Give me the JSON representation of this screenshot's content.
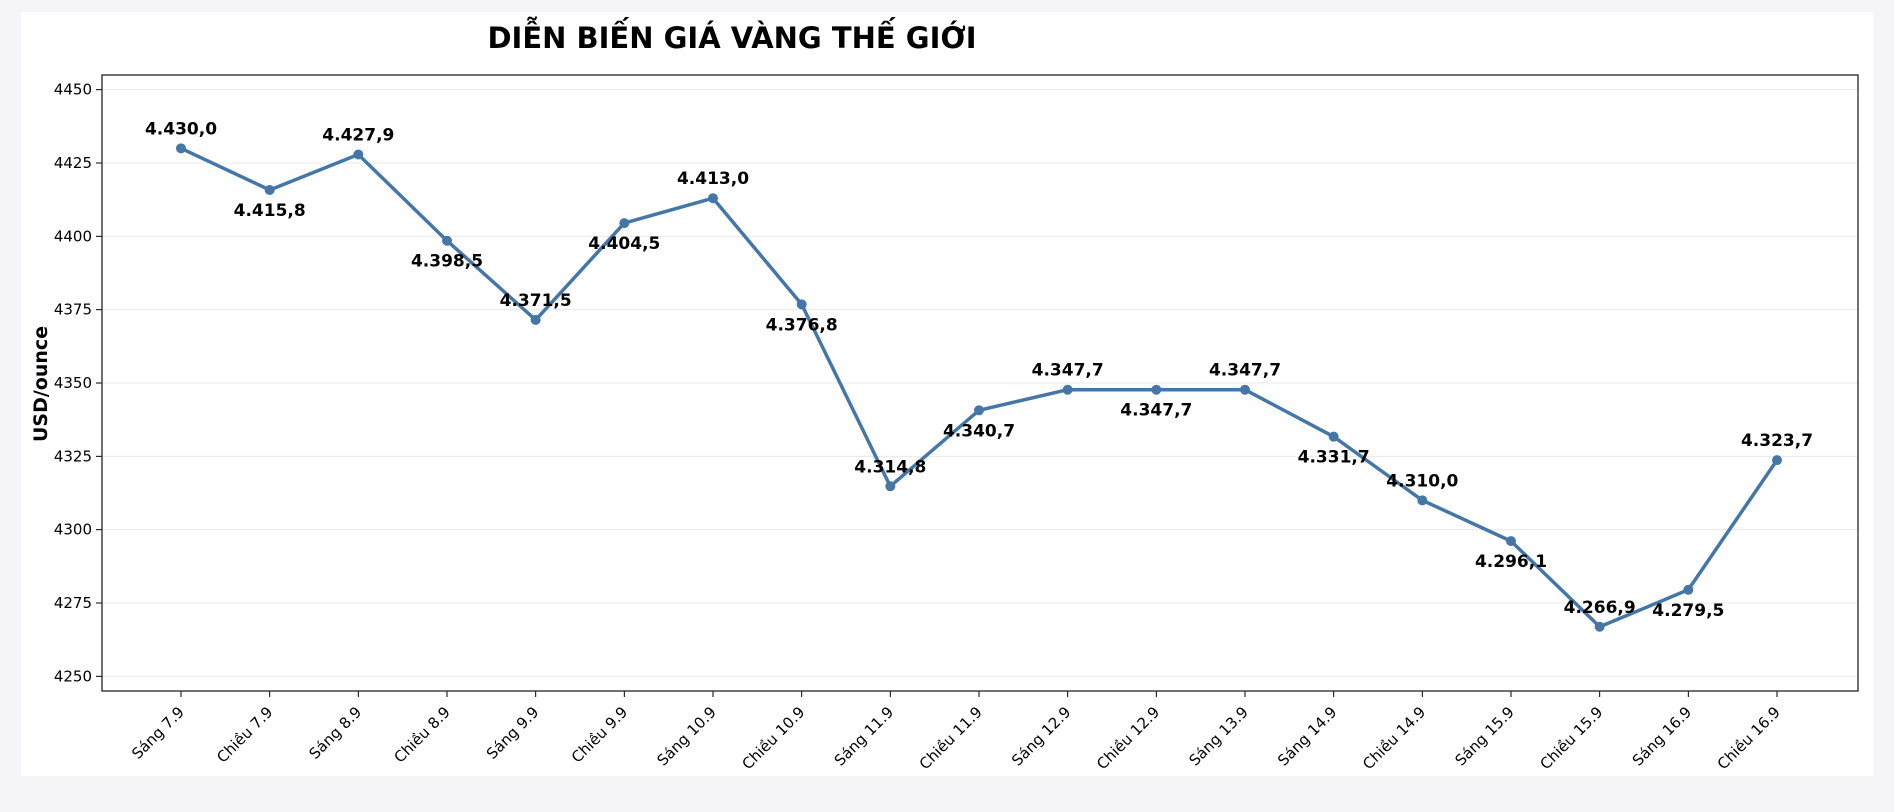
{
  "chart_data": {
    "type": "line",
    "title": "DIỄN BIẾN GIÁ VÀNG THẾ GIỚI",
    "xlabel": "",
    "ylabel": "USD/ounce",
    "ylim": [
      4245,
      4455
    ],
    "yticks": [
      4250,
      4275,
      4300,
      4325,
      4350,
      4375,
      4400,
      4425,
      4450
    ],
    "grid": "horizontal",
    "line_color": "#4477a8",
    "categories": [
      "Sáng 7.9",
      "Chiều 7.9",
      "Sáng 8.9",
      "Chiều 8.9",
      "Sáng 9.9",
      "Chiều 9.9",
      "Sáng 10.9",
      "Chiều 10.9",
      "Sáng 11.9",
      "Chiều 11.9",
      "Sáng 12.9",
      "Chiều 12.9",
      "Sáng 13.9",
      "Sáng 14.9",
      "Chiều 14.9",
      "Sáng 15.9",
      "Chiều 15.9",
      "Sáng 16.9",
      "Chiều 16.9"
    ],
    "values": [
      4430.0,
      4415.8,
      4427.9,
      4398.5,
      4371.5,
      4404.5,
      4413.0,
      4376.8,
      4314.8,
      4340.7,
      4347.7,
      4347.7,
      4347.7,
      4331.7,
      4310.0,
      4296.1,
      4266.9,
      4279.5,
      4323.7
    ],
    "data_labels": [
      "4.430,0",
      "4.415,8",
      "4.427,9",
      "4.398,5",
      "4.371,5",
      "4.404,5",
      "4.413,0",
      "4.376,8",
      "4.314,8",
      "4.340,7",
      "4.347,7",
      "4.347,7",
      "4.347,7",
      "4.331,7",
      "4.310,0",
      "4.296,1",
      "4.266,9",
      "4.279,5",
      "4.323,7"
    ],
    "label_positions": [
      "above",
      "below",
      "above",
      "below",
      "above",
      "below",
      "above",
      "below",
      "above",
      "below",
      "above",
      "below",
      "above",
      "below",
      "above",
      "below",
      "above",
      "below",
      "above"
    ]
  }
}
